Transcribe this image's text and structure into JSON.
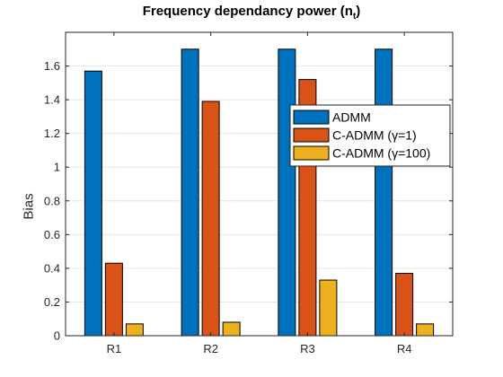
{
  "chart_data": {
    "type": "bar",
    "title_main": "Frequency dependancy power (n",
    "title_sub": "t",
    "title_end": ")",
    "xlabel": "",
    "ylabel": "Bias",
    "categories": [
      "R1",
      "R2",
      "R3",
      "R4"
    ],
    "ylim": [
      0,
      1.8
    ],
    "yticks": [
      "0",
      "0.2",
      "0.4",
      "0.6",
      "0.8",
      "1",
      "1.2",
      "1.4",
      "1.6"
    ],
    "grid": true,
    "legend_position": "top-right",
    "series": [
      {
        "name": "ADMM",
        "color": "#0072BD",
        "values": [
          1.57,
          1.7,
          1.7,
          1.7
        ]
      },
      {
        "name": "C-ADMM (γ=1)",
        "color": "#D95319",
        "values": [
          0.43,
          1.39,
          1.52,
          0.37
        ]
      },
      {
        "name": "C-ADMM (γ=100)",
        "color": "#EDB120",
        "values": [
          0.07,
          0.08,
          0.33,
          0.07
        ]
      }
    ]
  }
}
